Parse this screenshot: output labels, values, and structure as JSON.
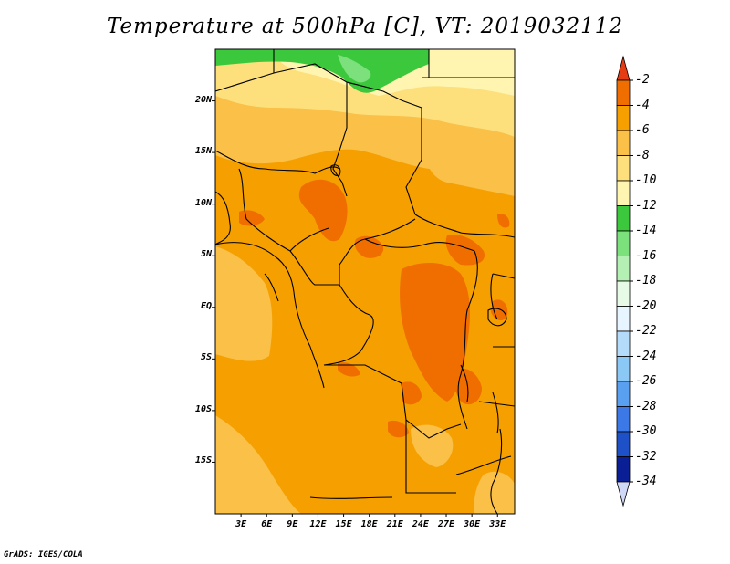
{
  "title": "Temperature at 500hPa [C], VT: 2019032112",
  "footer": "GrADS: IGES/COLA",
  "map": {
    "region": "Central Africa",
    "lon_range": [
      0,
      35
    ],
    "lat_range": [
      -20,
      25
    ],
    "lat_ticks": [
      {
        "lat": 20,
        "label": "20N"
      },
      {
        "lat": 15,
        "label": "15N"
      },
      {
        "lat": 10,
        "label": "10N"
      },
      {
        "lat": 5,
        "label": "5N"
      },
      {
        "lat": 0,
        "label": "EQ"
      },
      {
        "lat": -5,
        "label": "5S"
      },
      {
        "lat": -10,
        "label": "10S"
      },
      {
        "lat": -15,
        "label": "15S"
      }
    ],
    "lon_ticks": [
      {
        "lon": 3,
        "label": "3E"
      },
      {
        "lon": 6,
        "label": "6E"
      },
      {
        "lon": 9,
        "label": "9E"
      },
      {
        "lon": 12,
        "label": "12E"
      },
      {
        "lon": 15,
        "label": "15E"
      },
      {
        "lon": 18,
        "label": "18E"
      },
      {
        "lon": 21,
        "label": "21E"
      },
      {
        "lon": 24,
        "label": "24E"
      },
      {
        "lon": 27,
        "label": "27E"
      },
      {
        "lon": 30,
        "label": "30E"
      },
      {
        "lon": 33,
        "label": "33E"
      }
    ]
  },
  "colorbar": {
    "levels": [
      {
        "label": "-2",
        "color": "#e63c14"
      },
      {
        "label": "-4",
        "color": "#f06e00"
      },
      {
        "label": "-6",
        "color": "#f5a000"
      },
      {
        "label": "-8",
        "color": "#fac048"
      },
      {
        "label": "-10",
        "color": "#fde07c"
      },
      {
        "label": "-12",
        "color": "#fff5b0"
      },
      {
        "label": "-14",
        "color": "#3cc83c"
      },
      {
        "label": "-16",
        "color": "#7ce07c"
      },
      {
        "label": "-18",
        "color": "#b4f0b4"
      },
      {
        "label": "-20",
        "color": "#e6fae6"
      },
      {
        "label": "-22",
        "color": "#e6f5ff"
      },
      {
        "label": "-24",
        "color": "#b4dcfa"
      },
      {
        "label": "-26",
        "color": "#8cc8f5"
      },
      {
        "label": "-28",
        "color": "#5aa0f0"
      },
      {
        "label": "-30",
        "color": "#3c78e6"
      },
      {
        "label": "-32",
        "color": "#1e50c8"
      },
      {
        "label": "-34",
        "color": "#0a1e96"
      }
    ],
    "over_color": "#e63c14",
    "under_color": "#d0d8f8"
  }
}
